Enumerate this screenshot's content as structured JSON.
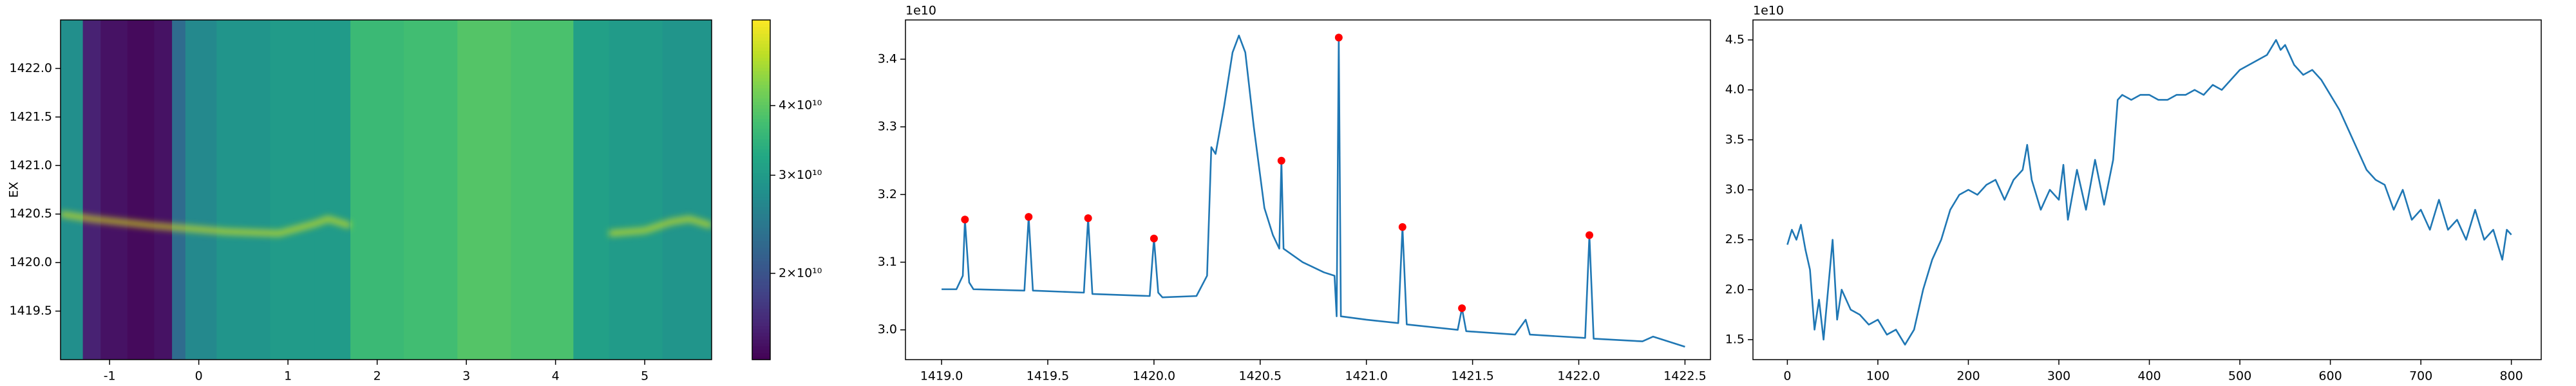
{
  "chart_data": [
    {
      "type": "heatmap",
      "ylabel": "EX",
      "colormap": "viridis",
      "xlim": [
        -1.55,
        5.75
      ],
      "ylim": [
        1419,
        1422.5
      ],
      "xticks": [
        -1,
        0,
        1,
        2,
        3,
        4,
        5
      ],
      "yticks": [
        1419.5,
        {
          "value": 1420,
          "label": "1420.0"
        },
        1420.5,
        {
          "value": 1421,
          "label": "1421.0"
        },
        1421.5,
        {
          "value": 1422,
          "label": "1422.0"
        }
      ],
      "x_edges": [
        -1.55,
        -1.3,
        -1.1,
        -0.8,
        -0.5,
        -0.3,
        -0.15,
        0.2,
        0.8,
        1.3,
        1.7,
        2.3,
        2.9,
        3.5,
        4.2,
        4.6,
        5.2,
        5.75
      ],
      "values": [
        28000000000,
        16000000000,
        15000000000,
        14500000000,
        15000000000,
        23000000000,
        27000000000,
        29000000000,
        30000000000,
        30000000000,
        36000000000,
        37000000000,
        39000000000,
        38000000000,
        31000000000,
        30000000000,
        29000000000
      ],
      "ridge": {
        "x": [
          -1.55,
          -1.2,
          -0.5,
          0.3,
          0.9,
          1.3,
          1.45,
          1.7,
          null,
          4.6,
          5.0,
          5.3,
          5.5,
          5.75
        ],
        "y": [
          1420.5,
          1420.45,
          1420.38,
          1420.32,
          1420.3,
          1420.4,
          1420.45,
          1420.38,
          null,
          1420.3,
          1420.33,
          1420.42,
          1420.45,
          1420.38
        ]
      },
      "colorbar": {
        "scale": "log",
        "clim": [
          14000000000,
          57000000000
        ],
        "ticks": [
          {
            "value": 20000000000,
            "label": "2×10¹⁰"
          },
          {
            "value": 30000000000,
            "label": "3×10¹⁰"
          },
          {
            "value": 40000000000,
            "label": "4×10¹⁰"
          }
        ]
      }
    },
    {
      "type": "line",
      "offset_text": "1e10",
      "xlim": [
        1418.83,
        1422.62
      ],
      "ylim": [
        2.956,
        3.458
      ],
      "xticks": [
        {
          "value": 1419,
          "label": "1419.0"
        },
        1419.5,
        {
          "value": 1420,
          "label": "1420.0"
        },
        1420.5,
        {
          "value": 1421,
          "label": "1421.0"
        },
        1421.5,
        {
          "value": 1422,
          "label": "1422.0"
        },
        1422.5
      ],
      "yticks": [
        {
          "value": 3,
          "label": "3.0"
        },
        3.1,
        3.2,
        3.3,
        3.4
      ],
      "series": [
        {
          "color": "#1f77b4",
          "x": [
            1419.0,
            1419.07,
            1419.1,
            1419.11,
            1419.13,
            1419.15,
            1419.39,
            1419.41,
            1419.43,
            1419.67,
            1419.69,
            1419.71,
            1419.98,
            1420.0,
            1420.02,
            1420.04,
            1420.2,
            1420.25,
            1420.27,
            1420.29,
            1420.33,
            1420.37,
            1420.4,
            1420.43,
            1420.47,
            1420.52,
            1420.56,
            1420.59,
            1420.6,
            1420.61,
            1420.7,
            1420.8,
            1420.85,
            1420.86,
            1420.87,
            1420.88,
            1421.0,
            1421.15,
            1421.17,
            1421.19,
            1421.43,
            1421.45,
            1421.47,
            1421.7,
            1421.75,
            1421.77,
            1422.03,
            1422.05,
            1422.07,
            1422.3,
            1422.35,
            1422.5
          ],
          "values": [
            3.06,
            3.06,
            3.08,
            3.163,
            3.07,
            3.06,
            3.058,
            3.167,
            3.058,
            3.055,
            3.165,
            3.053,
            3.05,
            3.135,
            3.055,
            3.048,
            3.05,
            3.08,
            3.27,
            3.26,
            3.33,
            3.41,
            3.435,
            3.41,
            3.3,
            3.18,
            3.14,
            3.12,
            3.25,
            3.12,
            3.1,
            3.085,
            3.08,
            3.02,
            3.432,
            3.02,
            3.015,
            3.01,
            3.152,
            3.008,
            3.0,
            3.032,
            2.998,
            2.993,
            3.015,
            2.993,
            2.988,
            3.14,
            2.987,
            2.983,
            2.99,
            2.975
          ]
        },
        {
          "color": "red",
          "marker": "o",
          "x": [
            1419.11,
            1419.41,
            1419.69,
            1420.0,
            1420.6,
            1420.87,
            1421.17,
            1421.45,
            1422.05
          ],
          "values": [
            3.163,
            3.167,
            3.165,
            3.135,
            3.25,
            3.432,
            3.152,
            3.032,
            3.14
          ]
        }
      ]
    },
    {
      "type": "line",
      "offset_text": "1e10",
      "xlim": [
        -38,
        833
      ],
      "ylim": [
        1.3,
        4.7
      ],
      "xticks": [
        0,
        100,
        200,
        300,
        400,
        500,
        600,
        700,
        800
      ],
      "yticks": [
        1.5,
        {
          "value": 2,
          "label": "2.0"
        },
        2.5,
        {
          "value": 3,
          "label": "3.0"
        },
        3.5,
        {
          "value": 4,
          "label": "4.0"
        },
        4.5
      ],
      "series": [
        {
          "color": "#1f77b4",
          "x": [
            0,
            5,
            10,
            15,
            20,
            25,
            30,
            35,
            40,
            45,
            50,
            55,
            60,
            70,
            80,
            90,
            100,
            110,
            120,
            130,
            140,
            150,
            160,
            170,
            180,
            190,
            200,
            210,
            220,
            230,
            240,
            250,
            260,
            265,
            270,
            280,
            290,
            300,
            305,
            310,
            320,
            330,
            340,
            350,
            360,
            365,
            370,
            380,
            390,
            400,
            410,
            420,
            430,
            440,
            450,
            460,
            470,
            480,
            490,
            500,
            510,
            520,
            530,
            540,
            545,
            550,
            560,
            570,
            580,
            590,
            600,
            610,
            620,
            630,
            640,
            650,
            660,
            670,
            680,
            690,
            700,
            710,
            720,
            730,
            740,
            750,
            760,
            770,
            780,
            790,
            795,
            800
          ],
          "values": [
            2.45,
            2.6,
            2.5,
            2.65,
            2.4,
            2.2,
            1.6,
            1.9,
            1.5,
            2.0,
            2.5,
            1.7,
            2.0,
            1.8,
            1.75,
            1.65,
            1.7,
            1.55,
            1.6,
            1.45,
            1.6,
            2.0,
            2.3,
            2.5,
            2.8,
            2.95,
            3.0,
            2.95,
            3.05,
            3.1,
            2.9,
            3.1,
            3.2,
            3.45,
            3.1,
            2.8,
            3.0,
            2.9,
            3.25,
            2.7,
            3.2,
            2.8,
            3.3,
            2.85,
            3.3,
            3.9,
            3.95,
            3.9,
            3.95,
            3.95,
            3.9,
            3.9,
            3.95,
            3.95,
            4.0,
            3.95,
            4.05,
            4.0,
            4.1,
            4.2,
            4.25,
            4.3,
            4.35,
            4.5,
            4.4,
            4.45,
            4.25,
            4.15,
            4.2,
            4.1,
            3.95,
            3.8,
            3.6,
            3.4,
            3.2,
            3.1,
            3.05,
            2.8,
            3.0,
            2.7,
            2.8,
            2.6,
            2.9,
            2.6,
            2.7,
            2.5,
            2.8,
            2.5,
            2.6,
            2.3,
            2.6,
            2.55
          ]
        }
      ]
    }
  ]
}
